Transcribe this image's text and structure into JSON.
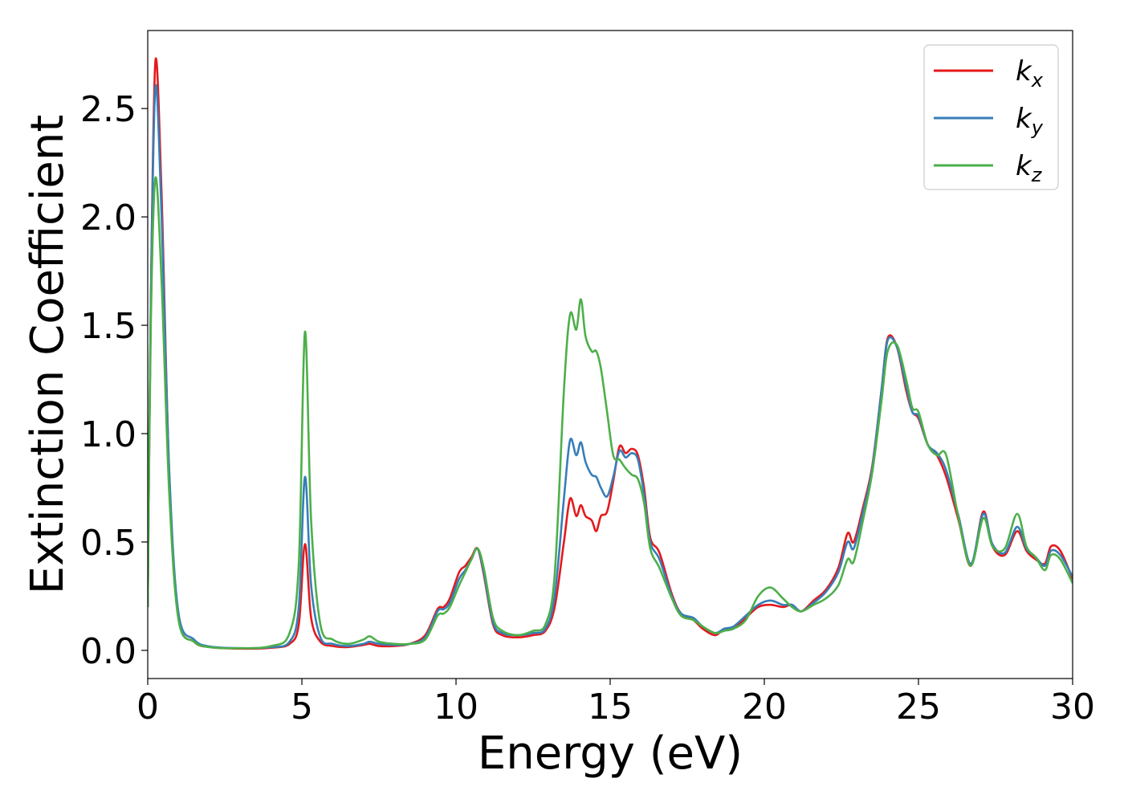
{
  "chart_data": {
    "type": "line",
    "xlabel": "Energy (eV)",
    "ylabel": "Extinction Coefficient",
    "xlim": [
      0,
      30
    ],
    "ylim": [
      -0.13,
      2.86
    ],
    "xticks": [
      "0",
      "5",
      "10",
      "15",
      "20",
      "25",
      "30"
    ],
    "xtick_values": [
      0,
      5,
      10,
      15,
      20,
      25,
      30
    ],
    "yticks": [
      "0.0",
      "0.5",
      "1.0",
      "1.5",
      "2.0",
      "2.5"
    ],
    "ytick_values": [
      0.0,
      0.5,
      1.0,
      1.5,
      2.0,
      2.5
    ],
    "grid": false,
    "legend_position": "top-right",
    "series": [
      {
        "name": "k",
        "subscript": "x",
        "color": "#e41a1c",
        "points": [
          [
            0,
            0.2
          ],
          [
            0.1,
            1.6
          ],
          [
            0.25,
            2.72
          ],
          [
            0.45,
            2.1
          ],
          [
            0.7,
            0.8
          ],
          [
            1.0,
            0.15
          ],
          [
            1.5,
            0.04
          ],
          [
            2,
            0.015
          ],
          [
            3,
            0.008
          ],
          [
            4,
            0.012
          ],
          [
            4.6,
            0.03
          ],
          [
            4.9,
            0.12
          ],
          [
            5.1,
            0.49
          ],
          [
            5.3,
            0.15
          ],
          [
            5.6,
            0.04
          ],
          [
            6,
            0.02
          ],
          [
            6.5,
            0.015
          ],
          [
            7,
            0.025
          ],
          [
            7.2,
            0.03
          ],
          [
            7.5,
            0.02
          ],
          [
            8,
            0.02
          ],
          [
            8.5,
            0.03
          ],
          [
            9,
            0.07
          ],
          [
            9.4,
            0.19
          ],
          [
            9.6,
            0.2
          ],
          [
            9.8,
            0.24
          ],
          [
            10.1,
            0.36
          ],
          [
            10.3,
            0.39
          ],
          [
            10.5,
            0.43
          ],
          [
            10.7,
            0.47
          ],
          [
            10.9,
            0.35
          ],
          [
            11.2,
            0.12
          ],
          [
            11.5,
            0.07
          ],
          [
            12,
            0.06
          ],
          [
            12.5,
            0.07
          ],
          [
            12.9,
            0.09
          ],
          [
            13.2,
            0.2
          ],
          [
            13.5,
            0.5
          ],
          [
            13.7,
            0.7
          ],
          [
            13.9,
            0.62
          ],
          [
            14.05,
            0.67
          ],
          [
            14.2,
            0.62
          ],
          [
            14.4,
            0.6
          ],
          [
            14.55,
            0.55
          ],
          [
            14.7,
            0.62
          ],
          [
            14.9,
            0.64
          ],
          [
            15.1,
            0.78
          ],
          [
            15.3,
            0.94
          ],
          [
            15.5,
            0.91
          ],
          [
            15.7,
            0.93
          ],
          [
            15.9,
            0.9
          ],
          [
            16.1,
            0.75
          ],
          [
            16.3,
            0.52
          ],
          [
            16.6,
            0.45
          ],
          [
            17,
            0.26
          ],
          [
            17.3,
            0.17
          ],
          [
            17.7,
            0.14
          ],
          [
            18,
            0.1
          ],
          [
            18.4,
            0.07
          ],
          [
            18.7,
            0.1
          ],
          [
            19,
            0.1
          ],
          [
            19.4,
            0.15
          ],
          [
            19.8,
            0.2
          ],
          [
            20.2,
            0.21
          ],
          [
            20.6,
            0.2
          ],
          [
            20.9,
            0.21
          ],
          [
            21.2,
            0.18
          ],
          [
            21.6,
            0.23
          ],
          [
            22,
            0.28
          ],
          [
            22.4,
            0.38
          ],
          [
            22.7,
            0.54
          ],
          [
            22.9,
            0.5
          ],
          [
            23.2,
            0.66
          ],
          [
            23.5,
            0.85
          ],
          [
            23.8,
            1.2
          ],
          [
            24,
            1.44
          ],
          [
            24.3,
            1.4
          ],
          [
            24.6,
            1.2
          ],
          [
            24.8,
            1.1
          ],
          [
            25,
            1.07
          ],
          [
            25.3,
            0.95
          ],
          [
            25.6,
            0.9
          ],
          [
            25.9,
            0.8
          ],
          [
            26.3,
            0.6
          ],
          [
            26.7,
            0.39
          ],
          [
            27.1,
            0.64
          ],
          [
            27.4,
            0.48
          ],
          [
            27.8,
            0.44
          ],
          [
            28.2,
            0.55
          ],
          [
            28.5,
            0.46
          ],
          [
            28.8,
            0.42
          ],
          [
            29.1,
            0.4
          ],
          [
            29.3,
            0.48
          ],
          [
            29.6,
            0.46
          ],
          [
            30,
            0.33
          ]
        ]
      },
      {
        "name": "k",
        "subscript": "y",
        "color": "#377eb8",
        "points": [
          [
            0,
            0.2
          ],
          [
            0.1,
            1.6
          ],
          [
            0.25,
            2.6
          ],
          [
            0.45,
            2.0
          ],
          [
            0.7,
            0.82
          ],
          [
            1.0,
            0.17
          ],
          [
            1.5,
            0.05
          ],
          [
            2,
            0.018
          ],
          [
            3,
            0.01
          ],
          [
            4,
            0.015
          ],
          [
            4.6,
            0.04
          ],
          [
            4.9,
            0.2
          ],
          [
            5.1,
            0.8
          ],
          [
            5.3,
            0.3
          ],
          [
            5.6,
            0.06
          ],
          [
            6,
            0.03
          ],
          [
            6.5,
            0.02
          ],
          [
            7,
            0.03
          ],
          [
            7.2,
            0.04
          ],
          [
            7.5,
            0.03
          ],
          [
            8,
            0.025
          ],
          [
            8.5,
            0.03
          ],
          [
            9,
            0.06
          ],
          [
            9.4,
            0.18
          ],
          [
            9.6,
            0.19
          ],
          [
            9.8,
            0.22
          ],
          [
            10.1,
            0.33
          ],
          [
            10.3,
            0.37
          ],
          [
            10.5,
            0.42
          ],
          [
            10.7,
            0.47
          ],
          [
            10.9,
            0.36
          ],
          [
            11.2,
            0.13
          ],
          [
            11.5,
            0.08
          ],
          [
            12,
            0.07
          ],
          [
            12.5,
            0.08
          ],
          [
            12.9,
            0.1
          ],
          [
            13.2,
            0.25
          ],
          [
            13.5,
            0.7
          ],
          [
            13.7,
            0.97
          ],
          [
            13.9,
            0.9
          ],
          [
            14.05,
            0.96
          ],
          [
            14.2,
            0.87
          ],
          [
            14.4,
            0.81
          ],
          [
            14.55,
            0.8
          ],
          [
            14.7,
            0.75
          ],
          [
            14.9,
            0.71
          ],
          [
            15.1,
            0.8
          ],
          [
            15.3,
            0.92
          ],
          [
            15.5,
            0.89
          ],
          [
            15.7,
            0.91
          ],
          [
            15.9,
            0.88
          ],
          [
            16.1,
            0.72
          ],
          [
            16.3,
            0.5
          ],
          [
            16.6,
            0.42
          ],
          [
            17,
            0.25
          ],
          [
            17.3,
            0.17
          ],
          [
            17.7,
            0.15
          ],
          [
            18,
            0.11
          ],
          [
            18.4,
            0.08
          ],
          [
            18.7,
            0.1
          ],
          [
            19,
            0.11
          ],
          [
            19.4,
            0.16
          ],
          [
            19.8,
            0.21
          ],
          [
            20.2,
            0.23
          ],
          [
            20.6,
            0.21
          ],
          [
            20.9,
            0.21
          ],
          [
            21.2,
            0.18
          ],
          [
            21.6,
            0.22
          ],
          [
            22,
            0.27
          ],
          [
            22.4,
            0.36
          ],
          [
            22.7,
            0.5
          ],
          [
            22.9,
            0.47
          ],
          [
            23.2,
            0.64
          ],
          [
            23.5,
            0.84
          ],
          [
            23.8,
            1.2
          ],
          [
            24,
            1.43
          ],
          [
            24.3,
            1.4
          ],
          [
            24.6,
            1.22
          ],
          [
            24.8,
            1.1
          ],
          [
            25,
            1.08
          ],
          [
            25.3,
            0.95
          ],
          [
            25.6,
            0.91
          ],
          [
            25.9,
            0.83
          ],
          [
            26.3,
            0.62
          ],
          [
            26.7,
            0.4
          ],
          [
            27.1,
            0.63
          ],
          [
            27.4,
            0.49
          ],
          [
            27.8,
            0.45
          ],
          [
            28.2,
            0.57
          ],
          [
            28.5,
            0.47
          ],
          [
            28.8,
            0.43
          ],
          [
            29.1,
            0.39
          ],
          [
            29.3,
            0.46
          ],
          [
            29.6,
            0.44
          ],
          [
            30,
            0.34
          ]
        ]
      },
      {
        "name": "k",
        "subscript": "z",
        "color": "#4daf4a",
        "points": [
          [
            0,
            0.2
          ],
          [
            0.1,
            1.5
          ],
          [
            0.25,
            2.18
          ],
          [
            0.45,
            1.7
          ],
          [
            0.7,
            0.72
          ],
          [
            1.0,
            0.14
          ],
          [
            1.5,
            0.04
          ],
          [
            2,
            0.015
          ],
          [
            3,
            0.01
          ],
          [
            4,
            0.02
          ],
          [
            4.6,
            0.08
          ],
          [
            4.9,
            0.4
          ],
          [
            5.1,
            1.47
          ],
          [
            5.3,
            0.6
          ],
          [
            5.6,
            0.12
          ],
          [
            6,
            0.05
          ],
          [
            6.5,
            0.03
          ],
          [
            7,
            0.05
          ],
          [
            7.2,
            0.065
          ],
          [
            7.5,
            0.04
          ],
          [
            8,
            0.03
          ],
          [
            8.5,
            0.03
          ],
          [
            9,
            0.05
          ],
          [
            9.4,
            0.16
          ],
          [
            9.6,
            0.17
          ],
          [
            9.8,
            0.2
          ],
          [
            10.1,
            0.3
          ],
          [
            10.3,
            0.36
          ],
          [
            10.5,
            0.42
          ],
          [
            10.7,
            0.47
          ],
          [
            10.9,
            0.38
          ],
          [
            11.2,
            0.15
          ],
          [
            11.5,
            0.09
          ],
          [
            12,
            0.07
          ],
          [
            12.5,
            0.09
          ],
          [
            12.9,
            0.12
          ],
          [
            13.2,
            0.35
          ],
          [
            13.5,
            1.2
          ],
          [
            13.7,
            1.55
          ],
          [
            13.9,
            1.48
          ],
          [
            14.05,
            1.62
          ],
          [
            14.2,
            1.45
          ],
          [
            14.4,
            1.38
          ],
          [
            14.55,
            1.38
          ],
          [
            14.7,
            1.3
          ],
          [
            14.9,
            1.1
          ],
          [
            15.1,
            0.9
          ],
          [
            15.3,
            0.88
          ],
          [
            15.5,
            0.84
          ],
          [
            15.7,
            0.81
          ],
          [
            15.9,
            0.79
          ],
          [
            16.1,
            0.68
          ],
          [
            16.3,
            0.47
          ],
          [
            16.6,
            0.38
          ],
          [
            17,
            0.24
          ],
          [
            17.3,
            0.16
          ],
          [
            17.7,
            0.14
          ],
          [
            18,
            0.11
          ],
          [
            18.4,
            0.08
          ],
          [
            18.7,
            0.09
          ],
          [
            19,
            0.1
          ],
          [
            19.4,
            0.14
          ],
          [
            19.8,
            0.25
          ],
          [
            20.2,
            0.29
          ],
          [
            20.6,
            0.24
          ],
          [
            20.9,
            0.2
          ],
          [
            21.2,
            0.18
          ],
          [
            21.6,
            0.21
          ],
          [
            22,
            0.24
          ],
          [
            22.4,
            0.3
          ],
          [
            22.7,
            0.42
          ],
          [
            22.9,
            0.41
          ],
          [
            23.2,
            0.6
          ],
          [
            23.5,
            0.82
          ],
          [
            23.8,
            1.15
          ],
          [
            24,
            1.38
          ],
          [
            24.3,
            1.41
          ],
          [
            24.6,
            1.25
          ],
          [
            24.8,
            1.12
          ],
          [
            25,
            1.1
          ],
          [
            25.3,
            0.95
          ],
          [
            25.6,
            0.9
          ],
          [
            25.9,
            0.9
          ],
          [
            26.3,
            0.61
          ],
          [
            26.7,
            0.39
          ],
          [
            27.1,
            0.61
          ],
          [
            27.4,
            0.48
          ],
          [
            27.8,
            0.47
          ],
          [
            28.2,
            0.63
          ],
          [
            28.5,
            0.48
          ],
          [
            28.8,
            0.43
          ],
          [
            29.1,
            0.37
          ],
          [
            29.3,
            0.44
          ],
          [
            29.6,
            0.42
          ],
          [
            30,
            0.31
          ]
        ]
      }
    ]
  }
}
